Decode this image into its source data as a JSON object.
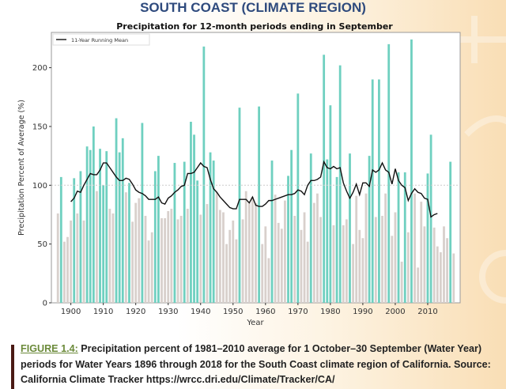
{
  "header": {
    "region_title": "SOUTH COAST (CLIMATE REGION)"
  },
  "caption": {
    "figure_label": "FIGURE 1.4:",
    "text": " Precipitation percent of 1981–2010 average for 1 October–30 September (Water Year) periods for Water Years 1896 through 2018 for the South Coast climate region of California. Source: California Climate Tracker https://wrcc.dri.edu/Climate/Tracker/CA/"
  },
  "chart_data": {
    "type": "bar",
    "title": "Precipitation for 12-month periods ending in September",
    "xlabel": "Year",
    "ylabel": "Precipitation Percent of Average (%)",
    "xlim": [
      1894,
      2020
    ],
    "ylim": [
      0,
      230
    ],
    "xticks": [
      1900,
      1910,
      1920,
      1930,
      1940,
      1950,
      1960,
      1970,
      1980,
      1990,
      2000,
      2010
    ],
    "yticks": [
      0,
      50,
      100,
      150,
      200
    ],
    "reference_line": 100,
    "legend": {
      "placement": "top-left",
      "entries": [
        "11-Year Running Mean"
      ]
    },
    "colors": {
      "above_average": "#6fd0c0",
      "below_average": "#d8d0cc",
      "running_mean": "#111111",
      "reference": "#cccccc"
    },
    "bars": {
      "start_year": 1896,
      "values": [
        76,
        107,
        52,
        56,
        70,
        106,
        76,
        112,
        70,
        133,
        130,
        150,
        95,
        131,
        100,
        129,
        80,
        76,
        157,
        128,
        140,
        94,
        102,
        69,
        85,
        89,
        153,
        74,
        53,
        60,
        112,
        125,
        72,
        72,
        78,
        80,
        119,
        71,
        74,
        120,
        80,
        154,
        143,
        104,
        75,
        218,
        84,
        128,
        121,
        94,
        79,
        77,
        50,
        62,
        70,
        54,
        166,
        71,
        95,
        86,
        90,
        85,
        167,
        50,
        65,
        38,
        121,
        92,
        68,
        63,
        87,
        108,
        130,
        74,
        178,
        62,
        77,
        52,
        127,
        85,
        93,
        73,
        211,
        122,
        168,
        66,
        107,
        202,
        66,
        71,
        127,
        50,
        91,
        62,
        55,
        93,
        125,
        190,
        73,
        190,
        74,
        93,
        220,
        57,
        77,
        111,
        35,
        111,
        60,
        224,
        93,
        30,
        86,
        65,
        110,
        143,
        64,
        48,
        43,
        65,
        55,
        120,
        42
      ]
    },
    "running_mean": {
      "name": "11-Year Running Mean",
      "start_year": 1900,
      "values": [
        86,
        89,
        95,
        94,
        100,
        105,
        110,
        109,
        109,
        113,
        119,
        119,
        115,
        111,
        107,
        104,
        104,
        106,
        105,
        101,
        96,
        94,
        93,
        91,
        88,
        88,
        88,
        90,
        85,
        84,
        89,
        91,
        94,
        96,
        99,
        100,
        110,
        110,
        111,
        115,
        119,
        116,
        115,
        105,
        97,
        94,
        90,
        87,
        84,
        81,
        80,
        80,
        88,
        88,
        88,
        85,
        90,
        83,
        82,
        82,
        84,
        87,
        87,
        88,
        89,
        90,
        91,
        92,
        92,
        93,
        96,
        95,
        92,
        100,
        104,
        104,
        105,
        107,
        120,
        115,
        114,
        116,
        114,
        115,
        102,
        95,
        89,
        94,
        101,
        92,
        102,
        102,
        99,
        113,
        111,
        113,
        119,
        113,
        111,
        101,
        114,
        104,
        100,
        98,
        87,
        93,
        97,
        94,
        93,
        89,
        88,
        73,
        75,
        76
      ]
    }
  }
}
